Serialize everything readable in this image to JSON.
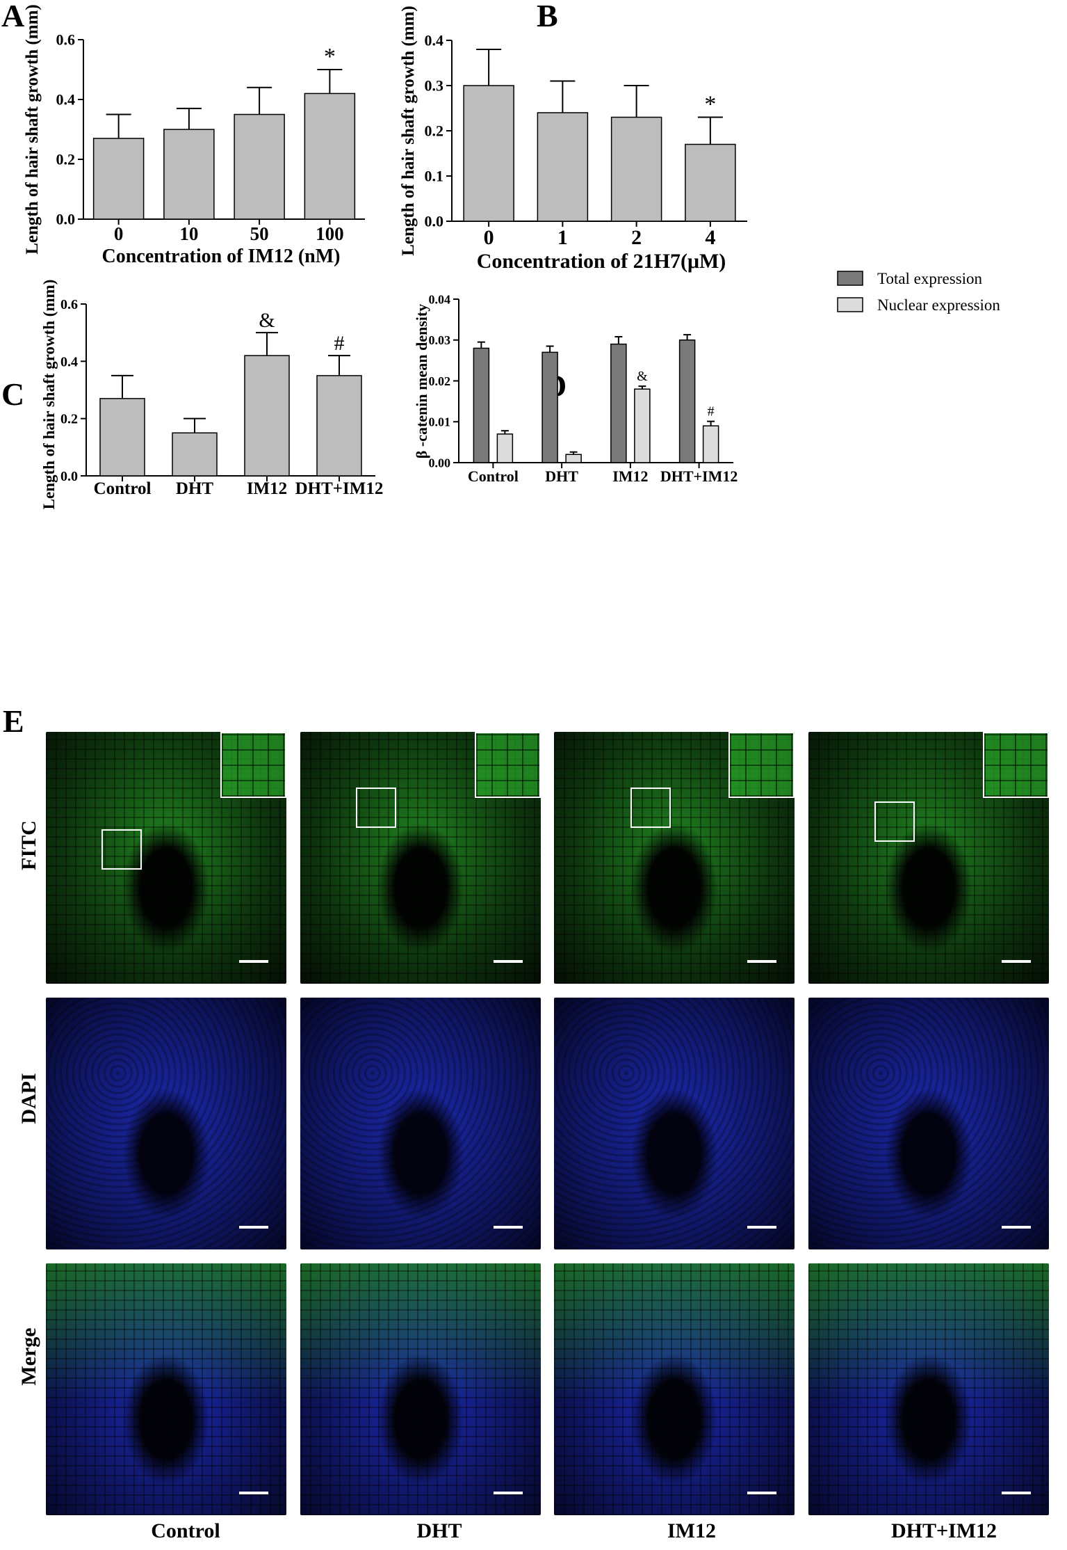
{
  "colors": {
    "bar_gray": "#bdbdbd",
    "bar_dark": "#7a7a7a",
    "bar_light": "#dcdcdc",
    "fitc_green": "#2fc02f",
    "dapi_blue": "#2233d6"
  },
  "panel_letters": {
    "a": "A",
    "b": "B",
    "c": "C",
    "d": "D",
    "e": "E"
  },
  "chart_data": [
    {
      "panel": "A",
      "type": "bar",
      "categories": [
        "0",
        "10",
        "50",
        "100"
      ],
      "values": [
        0.27,
        0.3,
        0.35,
        0.42
      ],
      "errors": [
        0.08,
        0.07,
        0.09,
        0.08
      ],
      "annotations": [
        "",
        "",
        "",
        "*"
      ],
      "xlabel": "Concentration of IM12 (nM)",
      "ylabel": "Length of hair shaft growth (mm)",
      "ylim": [
        0,
        0.6
      ],
      "yticks": [
        "0.0",
        "0.2",
        "0.4",
        "0.6"
      ],
      "grid": false
    },
    {
      "panel": "B",
      "type": "bar",
      "categories": [
        "0",
        "1",
        "2",
        "4"
      ],
      "values": [
        0.3,
        0.24,
        0.23,
        0.17
      ],
      "errors": [
        0.08,
        0.07,
        0.07,
        0.06
      ],
      "annotations": [
        "",
        "",
        "",
        "*"
      ],
      "xlabel": "Concentration of 21H7(μM)",
      "ylabel": "Length of hair shaft growth (mm)",
      "ylim": [
        0,
        0.4
      ],
      "yticks": [
        "0.0",
        "0.1",
        "0.2",
        "0.3",
        "0.4"
      ],
      "grid": false
    },
    {
      "panel": "C",
      "type": "bar",
      "categories": [
        "Control",
        "DHT",
        "IM12",
        "DHT+IM12"
      ],
      "values": [
        0.27,
        0.15,
        0.42,
        0.35
      ],
      "errors": [
        0.08,
        0.05,
        0.08,
        0.07
      ],
      "annotations": [
        "",
        "",
        "&",
        "#"
      ],
      "xlabel": "",
      "ylabel": "Length of hair shaft growth (mm)",
      "ylim": [
        0,
        0.6
      ],
      "yticks": [
        "0.0",
        "0.2",
        "0.4",
        "0.6"
      ],
      "grid": false
    },
    {
      "panel": "D",
      "type": "bar",
      "categories": [
        "Control",
        "DHT",
        "IM12",
        "DHT+IM12"
      ],
      "series": [
        {
          "name": "Total expression",
          "values": [
            0.028,
            0.027,
            0.029,
            0.03
          ],
          "errors": [
            0.0015,
            0.0015,
            0.0018,
            0.0013
          ],
          "annotations": [
            "",
            "",
            "",
            ""
          ]
        },
        {
          "name": "Nuclear expression",
          "values": [
            0.007,
            0.002,
            0.018,
            0.009
          ],
          "errors": [
            0.0008,
            0.0006,
            0.0007,
            0.0011
          ],
          "annotations": [
            "",
            "",
            "&",
            "#"
          ]
        }
      ],
      "xlabel": "",
      "ylabel": "β -catenin mean density",
      "ylim": [
        0,
        0.04
      ],
      "yticks": [
        "0.00",
        "0.01",
        "0.02",
        "0.03",
        "0.04"
      ],
      "legend": "top-right",
      "grid": false
    }
  ],
  "micrographs": {
    "row_labels": [
      "FITC",
      "DAPI",
      "Merge"
    ],
    "column_labels": [
      "Control",
      "DHT",
      "IM12",
      "DHT+IM12"
    ]
  }
}
